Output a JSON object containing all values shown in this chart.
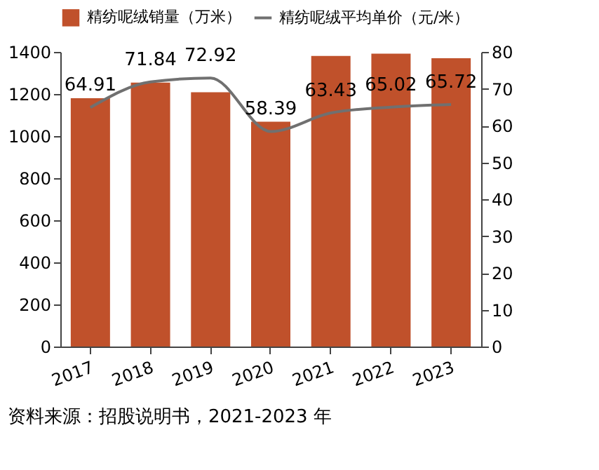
{
  "chart_data": {
    "type": "bar",
    "categories": [
      "2017",
      "2018",
      "2019",
      "2020",
      "2021",
      "2022",
      "2023"
    ],
    "series": [
      {
        "name": "精纺呢绒销量（万米）",
        "color": "#c0512b",
        "values": [
          1180,
          1254,
          1208,
          1068,
          1381,
          1392,
          1370
        ]
      },
      {
        "name": "精纺呢绒平均单价（元/米）",
        "type": "line",
        "axis": "y2",
        "color": "#707070",
        "values": [
          64.91,
          71.84,
          72.92,
          58.39,
          63.43,
          65.02,
          65.72
        ],
        "value_labels": [
          "64.91",
          "71.84",
          "72.92",
          "58.39",
          "63.43",
          "65.02",
          "65.72"
        ]
      }
    ],
    "ylim": [
      0,
      1400
    ],
    "yticks": [
      0,
      200,
      400,
      600,
      800,
      1000,
      1200,
      1400
    ],
    "y2lim": [
      0,
      80
    ],
    "y2ticks": [
      0,
      10,
      20,
      30,
      40,
      50,
      60,
      70,
      80
    ],
    "legend": "top",
    "grid": false,
    "marker": "none",
    "annotations": [
      "资料来源：招股说明书，2021-2023 年"
    ]
  }
}
